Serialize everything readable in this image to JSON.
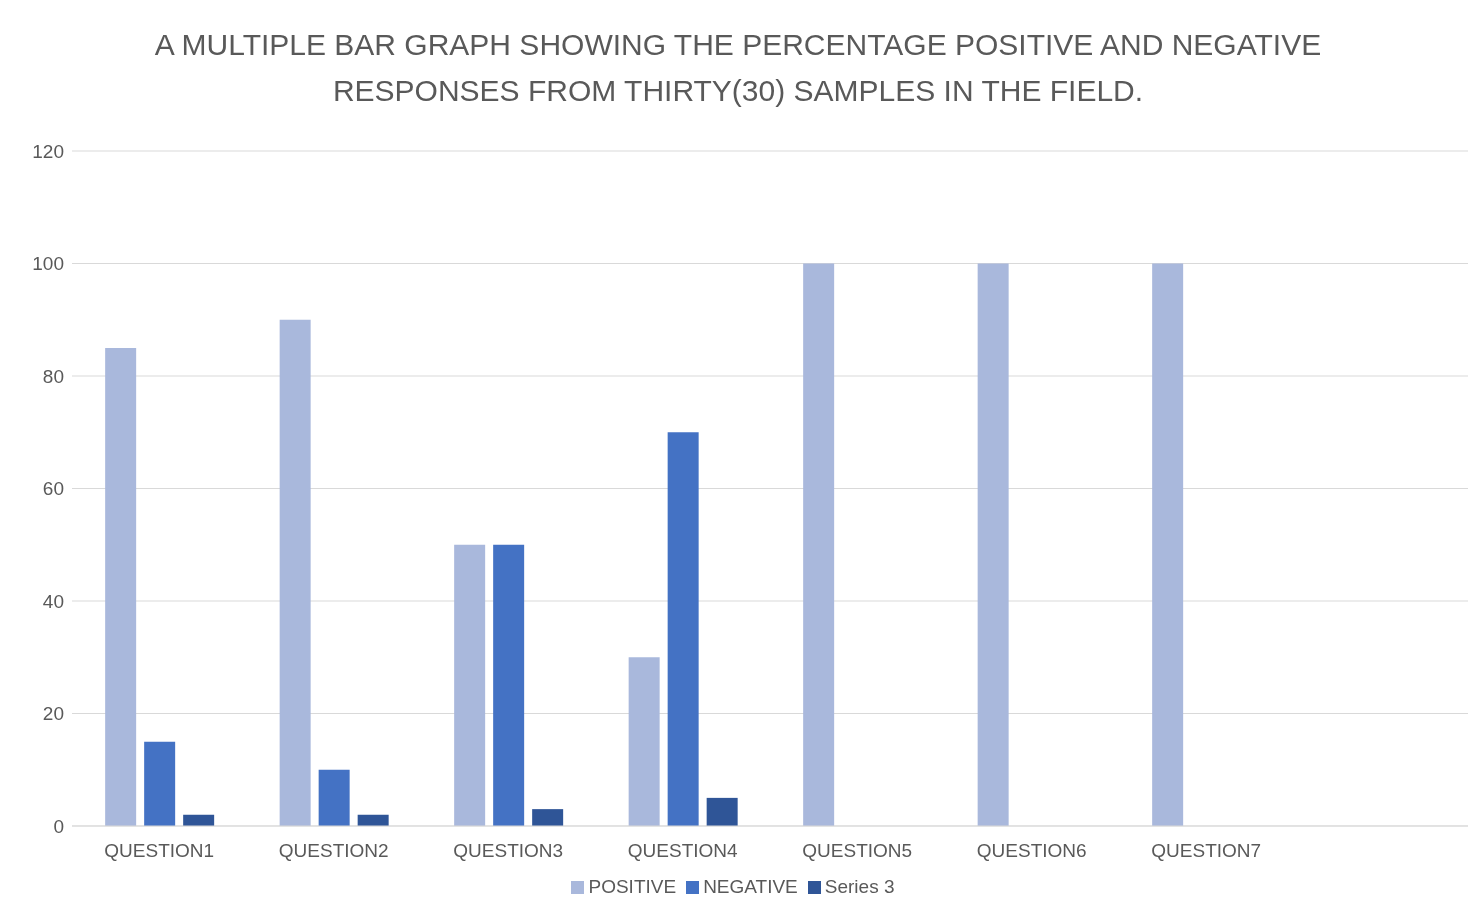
{
  "chart_data": {
    "type": "bar",
    "title": "A MULTIPLE BAR GRAPH SHOWING THE PERCENTAGE POSITIVE AND NEGATIVE RESPONSES FROM THIRTY(30) SAMPLES IN THE FIELD.",
    "categories": [
      "QUESTION1",
      "QUESTION2",
      "QUESTION3",
      "QUESTION4",
      "QUESTION5",
      "QUESTION6",
      "QUESTION7",
      null
    ],
    "series": [
      {
        "name": "POSITIVE",
        "color": "#a9b8dc",
        "values": [
          85,
          90,
          50,
          30,
          100,
          100,
          100,
          null
        ]
      },
      {
        "name": "NEGATIVE",
        "color": "#4472c4",
        "values": [
          15,
          10,
          50,
          70,
          0,
          0,
          0,
          null
        ]
      },
      {
        "name": "Series 3",
        "color": "#2f5597",
        "values": [
          2,
          2,
          3,
          5,
          null,
          null,
          null,
          null
        ]
      }
    ],
    "ylim": [
      0,
      120
    ],
    "yticks": [
      0,
      20,
      40,
      60,
      80,
      100,
      120
    ],
    "grid": "y",
    "legend": "bottom"
  }
}
